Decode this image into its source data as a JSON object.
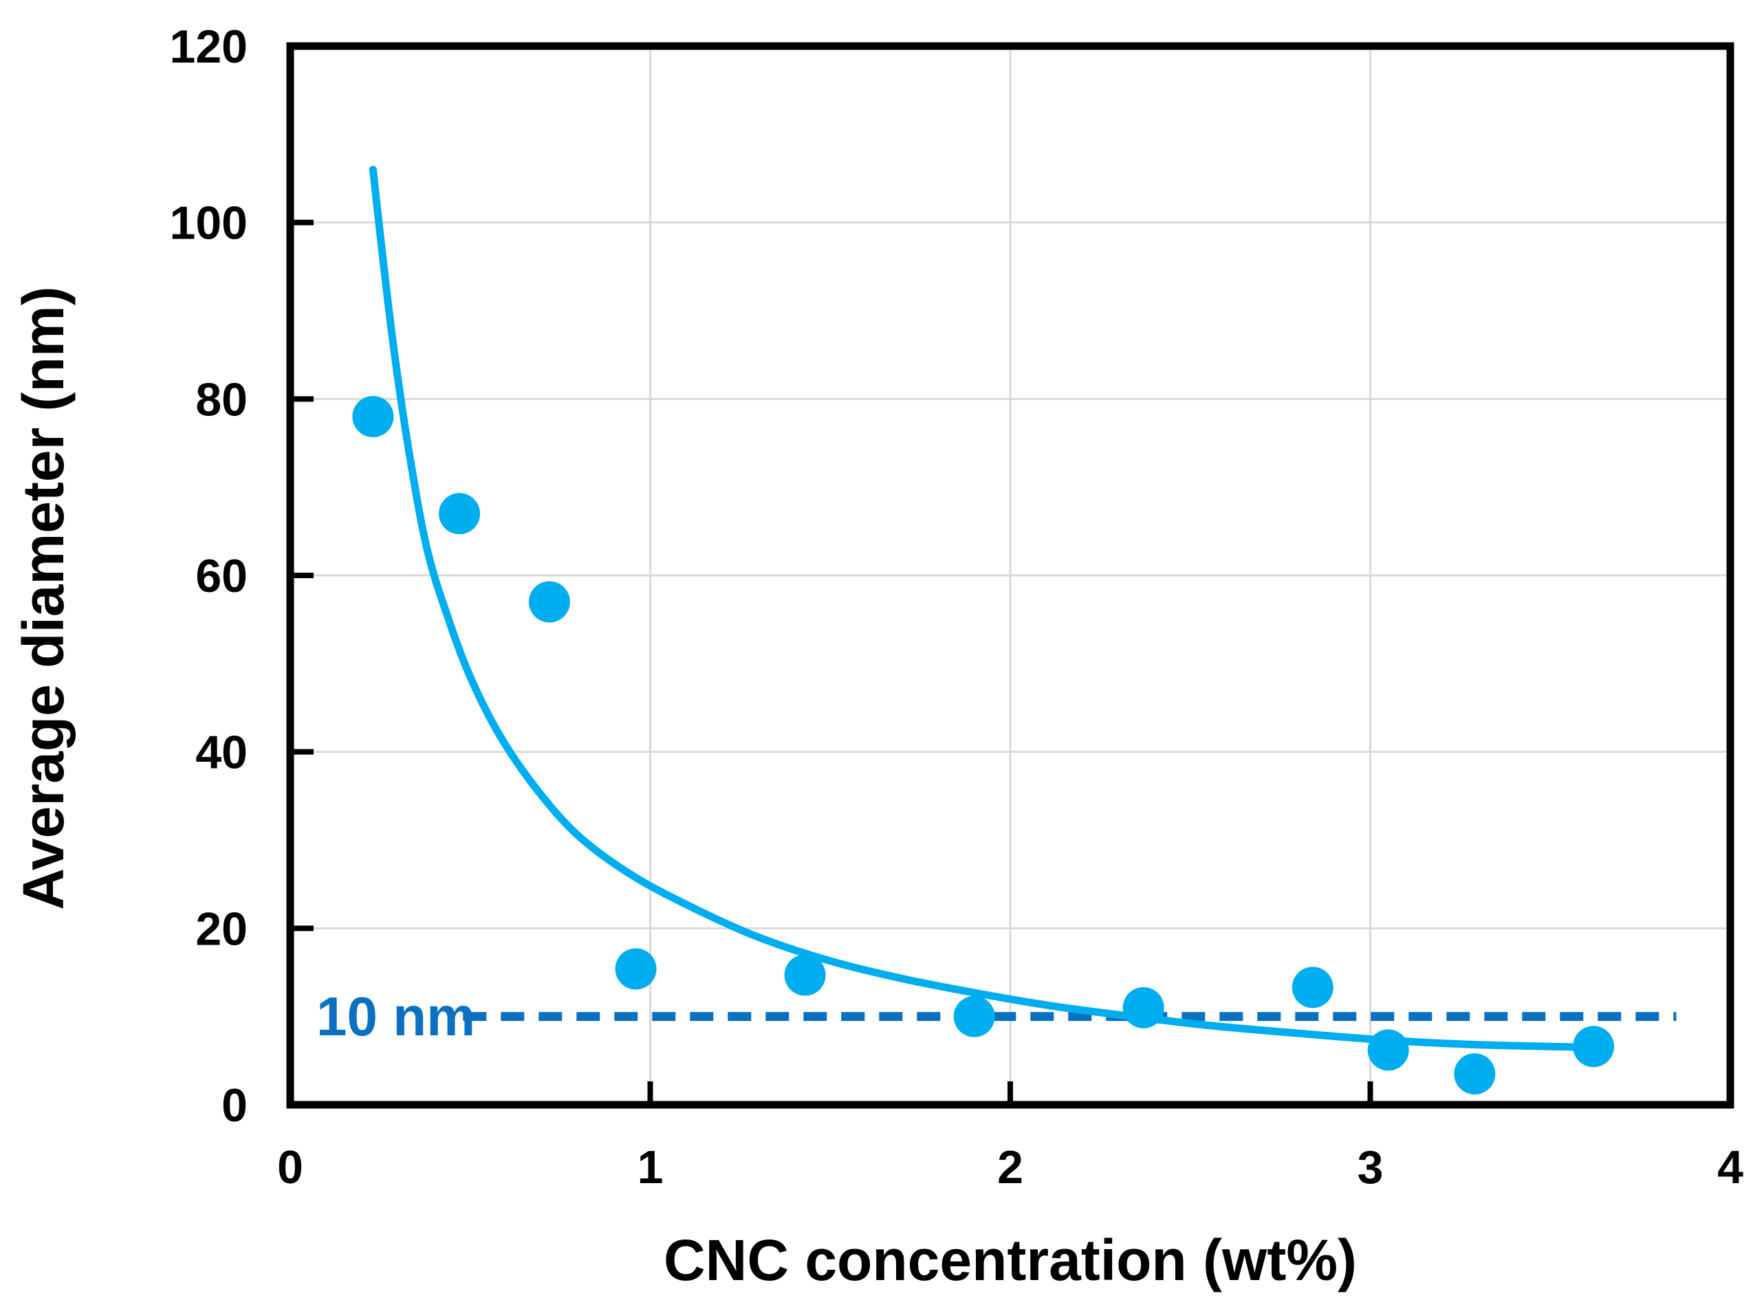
{
  "chart_data": {
    "type": "scatter",
    "title": "",
    "xlabel": "CNC concentration (wt%)",
    "ylabel": "Average diameter (nm)",
    "xlim": [
      0,
      4
    ],
    "ylim": [
      0,
      120
    ],
    "xticks": [
      0,
      1,
      2,
      3,
      4
    ],
    "yticks": [
      0,
      20,
      40,
      60,
      80,
      100,
      120
    ],
    "grid": true,
    "legend": "none",
    "series": [
      {
        "name": "average-diameter-points",
        "type": "scatter",
        "color": "#00aeef",
        "points": [
          [
            0.23,
            78
          ],
          [
            0.47,
            67
          ],
          [
            0.72,
            57
          ],
          [
            0.96,
            15.4
          ],
          [
            1.43,
            14.7
          ],
          [
            1.9,
            10
          ],
          [
            2.37,
            11
          ],
          [
            2.84,
            13.3
          ],
          [
            3.05,
            6.2
          ],
          [
            3.29,
            3.5
          ],
          [
            3.62,
            6.6
          ]
        ]
      },
      {
        "name": "fit-curve",
        "type": "line",
        "color": "#00aeef",
        "points": [
          [
            0.23,
            106
          ],
          [
            0.26,
            95
          ],
          [
            0.29,
            85
          ],
          [
            0.33,
            74
          ],
          [
            0.38,
            63
          ],
          [
            0.44,
            55
          ],
          [
            0.5,
            48.5
          ],
          [
            0.58,
            42
          ],
          [
            0.68,
            36
          ],
          [
            0.8,
            30.5
          ],
          [
            0.95,
            26
          ],
          [
            1.12,
            22.3
          ],
          [
            1.3,
            19
          ],
          [
            1.5,
            16.3
          ],
          [
            1.7,
            14.3
          ],
          [
            1.9,
            12.7
          ],
          [
            2.1,
            11.3
          ],
          [
            2.3,
            10.2
          ],
          [
            2.55,
            9.0
          ],
          [
            2.8,
            8.1
          ],
          [
            3.05,
            7.3
          ],
          [
            3.3,
            6.8
          ],
          [
            3.62,
            6.5
          ]
        ]
      },
      {
        "name": "reference-line-10nm",
        "type": "dashed-line",
        "color": "#0b70c0",
        "y": 10,
        "x_start": 0.48,
        "x_end": 3.85,
        "label": "10 nm"
      }
    ]
  },
  "colors": {
    "marker": "#00aeef",
    "curve": "#00aeef",
    "reference": "#0b70c0",
    "gridline": "#d9d9d9",
    "frame": "#000000",
    "background": "#ffffff"
  }
}
